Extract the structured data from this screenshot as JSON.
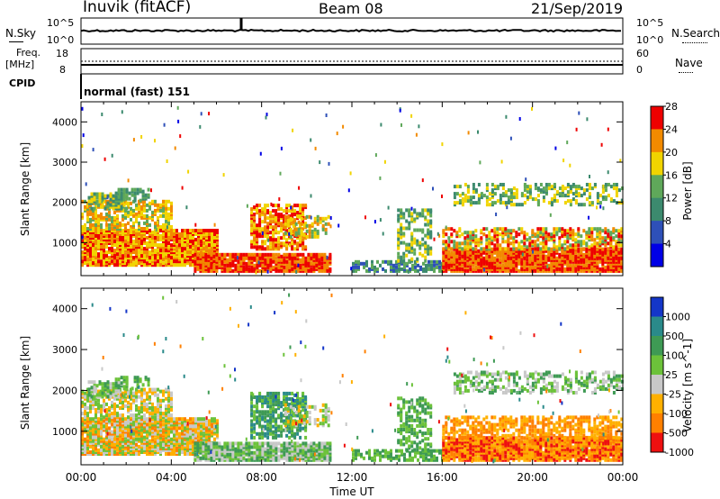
{
  "header": {
    "station": "Inuvik (fitACF)",
    "beam": "Beam 08",
    "date": "21/Sep/2019"
  },
  "top_panels": {
    "nsky_label": "N.Sky",
    "nsky_ticks": [
      "10^5",
      "10^0"
    ],
    "nsearch_label": "N.Search",
    "nsearch_ticks": [
      "10^5",
      "10^0"
    ],
    "freq_label_1": "Freq.",
    "freq_label_2": "[MHz]",
    "freq_ticks": [
      "18",
      "8"
    ],
    "nave_label": "Nave",
    "nave_ticks": [
      "60",
      "0"
    ],
    "cpid_label": "CPID",
    "cpid_text": "normal (fast) 151"
  },
  "chart_data": [
    {
      "type": "heatmap",
      "title": "",
      "ylabel": "Slant Range [km]",
      "xlabel": "",
      "y_ticks": [
        "1000",
        "2000",
        "3000",
        "4000"
      ],
      "ylim": [
        180,
        4500
      ],
      "xlim": [
        "00:00",
        "24:00"
      ],
      "colorbar": {
        "label": "Power [dB]",
        "ticks": [
          "4",
          "8",
          "12",
          "16",
          "20",
          "24",
          "28"
        ],
        "colors": [
          "#0000e6",
          "#2e50b8",
          "#3c8a6e",
          "#5fa85a",
          "#f1d400",
          "#f28a00",
          "#ee0000"
        ]
      }
    },
    {
      "type": "heatmap",
      "title": "",
      "ylabel": "Slant Range [km]",
      "xlabel": "Time UT",
      "x_ticks": [
        "00:00",
        "04:00",
        "08:00",
        "12:00",
        "16:00",
        "20:00",
        "00:00"
      ],
      "y_ticks": [
        "1000",
        "2000",
        "3000",
        "4000"
      ],
      "ylim": [
        180,
        4500
      ],
      "xlim": [
        "00:00",
        "24:00"
      ],
      "colorbar": {
        "label": "Velocity [m s^-1]",
        "ticks": [
          "1000",
          "500",
          "100",
          "25",
          "-25",
          "-100",
          "-500",
          "-1000"
        ],
        "colors": [
          "#1436c8",
          "#2a8a8a",
          "#3e9a54",
          "#6cc23a",
          "#c8c8c8",
          "#ffb000",
          "#ff8000",
          "#ee1010"
        ]
      }
    }
  ]
}
